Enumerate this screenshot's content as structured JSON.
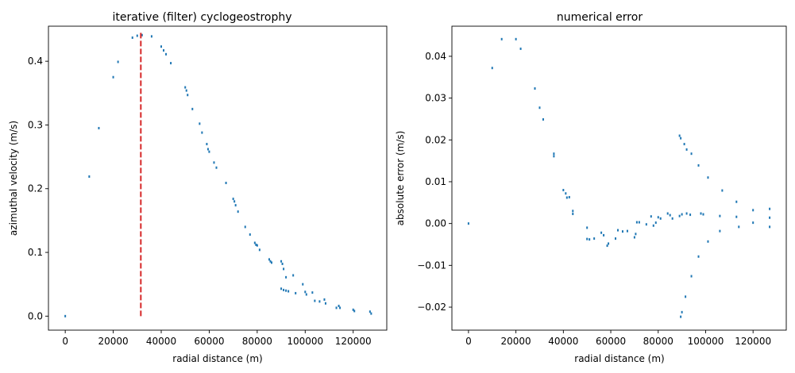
{
  "chart_data": [
    {
      "type": "scatter",
      "title": "iterative (filter) cyclogeostrophy",
      "xlabel": "radial distance (m)",
      "ylabel": "azimuthal velocity (m/s)",
      "xlim": [
        -7000,
        134000
      ],
      "ylim": [
        -0.022,
        0.455
      ],
      "xticks": [
        0,
        20000,
        40000,
        60000,
        80000,
        100000,
        120000
      ],
      "yticks": [
        0.0,
        0.1,
        0.2,
        0.3,
        0.4
      ],
      "ytick_labels": [
        "0.0",
        "0.1",
        "0.2",
        "0.3",
        "0.4"
      ],
      "grid": false,
      "vline": {
        "x": 31500,
        "ymin": 0.0,
        "ymax": 0.445,
        "color": "#d62728",
        "style": "dashed"
      },
      "series": [
        {
          "color": "#1f77b4",
          "points": [
            [
              0,
              0.0
            ],
            [
              10000,
              0.219
            ],
            [
              14000,
              0.295
            ],
            [
              20000,
              0.375
            ],
            [
              22000,
              0.399
            ],
            [
              28000,
              0.437
            ],
            [
              30000,
              0.44
            ],
            [
              32000,
              0.441
            ],
            [
              36000,
              0.439
            ],
            [
              40000,
              0.423
            ],
            [
              41000,
              0.417
            ],
            [
              42000,
              0.411
            ],
            [
              44000,
              0.397
            ],
            [
              50000,
              0.359
            ],
            [
              50500,
              0.354
            ],
            [
              51000,
              0.347
            ],
            [
              53000,
              0.325
            ],
            [
              56000,
              0.302
            ],
            [
              57000,
              0.288
            ],
            [
              59000,
              0.27
            ],
            [
              59500,
              0.262
            ],
            [
              60000,
              0.258
            ],
            [
              62000,
              0.241
            ],
            [
              63000,
              0.233
            ],
            [
              67000,
              0.209
            ],
            [
              70000,
              0.184
            ],
            [
              70500,
              0.18
            ],
            [
              71000,
              0.174
            ],
            [
              72000,
              0.164
            ],
            [
              75000,
              0.14
            ],
            [
              77000,
              0.128
            ],
            [
              79000,
              0.115
            ],
            [
              79500,
              0.112
            ],
            [
              80000,
              0.111
            ],
            [
              81000,
              0.104
            ],
            [
              85000,
              0.089
            ],
            [
              85500,
              0.086
            ],
            [
              86000,
              0.084
            ],
            [
              90000,
              0.086
            ],
            [
              90500,
              0.082
            ],
            [
              91000,
              0.074
            ],
            [
              92000,
              0.061
            ],
            [
              90000,
              0.043
            ],
            [
              91000,
              0.041
            ],
            [
              92000,
              0.04
            ],
            [
              93000,
              0.039
            ],
            [
              95000,
              0.064
            ],
            [
              96000,
              0.036
            ],
            [
              99000,
              0.05
            ],
            [
              100000,
              0.038
            ],
            [
              100500,
              0.034
            ],
            [
              103000,
              0.037
            ],
            [
              104000,
              0.024
            ],
            [
              106000,
              0.023
            ],
            [
              108000,
              0.026
            ],
            [
              108500,
              0.02
            ],
            [
              113000,
              0.013
            ],
            [
              114000,
              0.016
            ],
            [
              114500,
              0.013
            ],
            [
              120000,
              0.01
            ],
            [
              120500,
              0.008
            ],
            [
              127000,
              0.007
            ],
            [
              127500,
              0.004
            ]
          ]
        }
      ]
    },
    {
      "type": "scatter",
      "title": "numerical error",
      "xlabel": "radial distance (m)",
      "ylabel": "absolute error (m/s)",
      "xlim": [
        -7000,
        134000
      ],
      "ylim": [
        -0.0255,
        0.0472
      ],
      "xticks": [
        0,
        20000,
        40000,
        60000,
        80000,
        100000,
        120000
      ],
      "yticks": [
        -0.02,
        -0.01,
        0.0,
        0.01,
        0.02,
        0.03,
        0.04
      ],
      "ytick_labels": [
        "−0.02",
        "−0.01",
        "0.00",
        "0.01",
        "0.02",
        "0.03",
        "0.04"
      ],
      "grid": false,
      "series": [
        {
          "color": "#1f77b4",
          "points": [
            [
              0,
              0.0
            ],
            [
              10000,
              0.0372
            ],
            [
              14000,
              0.0441
            ],
            [
              20000,
              0.0441
            ],
            [
              22000,
              0.0418
            ],
            [
              28000,
              0.0323
            ],
            [
              30000,
              0.0277
            ],
            [
              31500,
              0.0249
            ],
            [
              36000,
              0.0167
            ],
            [
              36000,
              0.0161
            ],
            [
              40000,
              0.008
            ],
            [
              41000,
              0.0072
            ],
            [
              41500,
              0.0062
            ],
            [
              42500,
              0.0063
            ],
            [
              44000,
              0.003
            ],
            [
              44000,
              0.0023
            ],
            [
              50000,
              -0.001
            ],
            [
              50000,
              -0.0037
            ],
            [
              51000,
              -0.0038
            ],
            [
              53000,
              -0.0036
            ],
            [
              56000,
              -0.0022
            ],
            [
              57000,
              -0.0028
            ],
            [
              58500,
              -0.0053
            ],
            [
              59000,
              -0.0048
            ],
            [
              62000,
              -0.0036
            ],
            [
              63000,
              -0.0016
            ],
            [
              65000,
              -0.0019
            ],
            [
              67000,
              -0.0018
            ],
            [
              70000,
              -0.0033
            ],
            [
              70500,
              -0.0025
            ],
            [
              71000,
              0.0003
            ],
            [
              72000,
              0.0003
            ],
            [
              75000,
              -0.0002
            ],
            [
              77000,
              0.0017
            ],
            [
              78000,
              -0.0005
            ],
            [
              79000,
              0.0002
            ],
            [
              80000,
              0.0015
            ],
            [
              81000,
              0.0012
            ],
            [
              84000,
              0.0024
            ],
            [
              85000,
              0.002
            ],
            [
              86000,
              0.0012
            ],
            [
              89000,
              0.0018
            ],
            [
              90000,
              0.0022
            ],
            [
              92000,
              0.0024
            ],
            [
              93500,
              0.0021
            ],
            [
              98000,
              0.0024
            ],
            [
              99000,
              0.0022
            ],
            [
              106000,
              0.0018
            ],
            [
              113000,
              0.0016
            ],
            [
              114000,
              -0.0008
            ],
            [
              120000,
              0.0002
            ],
            [
              127000,
              0.0014
            ],
            [
              127000,
              -0.0008
            ],
            [
              89000,
              0.021
            ],
            [
              89500,
              0.0204
            ],
            [
              91000,
              0.019
            ],
            [
              92000,
              0.0177
            ],
            [
              94000,
              0.0167
            ],
            [
              97000,
              0.0139
            ],
            [
              101000,
              0.011
            ],
            [
              107000,
              0.0079
            ],
            [
              113000,
              0.0052
            ],
            [
              120000,
              0.0032
            ],
            [
              127000,
              0.0035
            ],
            [
              89500,
              -0.0223
            ],
            [
              90000,
              -0.0212
            ],
            [
              91500,
              -0.0175
            ],
            [
              94000,
              -0.0126
            ],
            [
              97000,
              -0.0079
            ],
            [
              101000,
              -0.0043
            ],
            [
              106000,
              -0.0018
            ]
          ]
        }
      ]
    }
  ]
}
